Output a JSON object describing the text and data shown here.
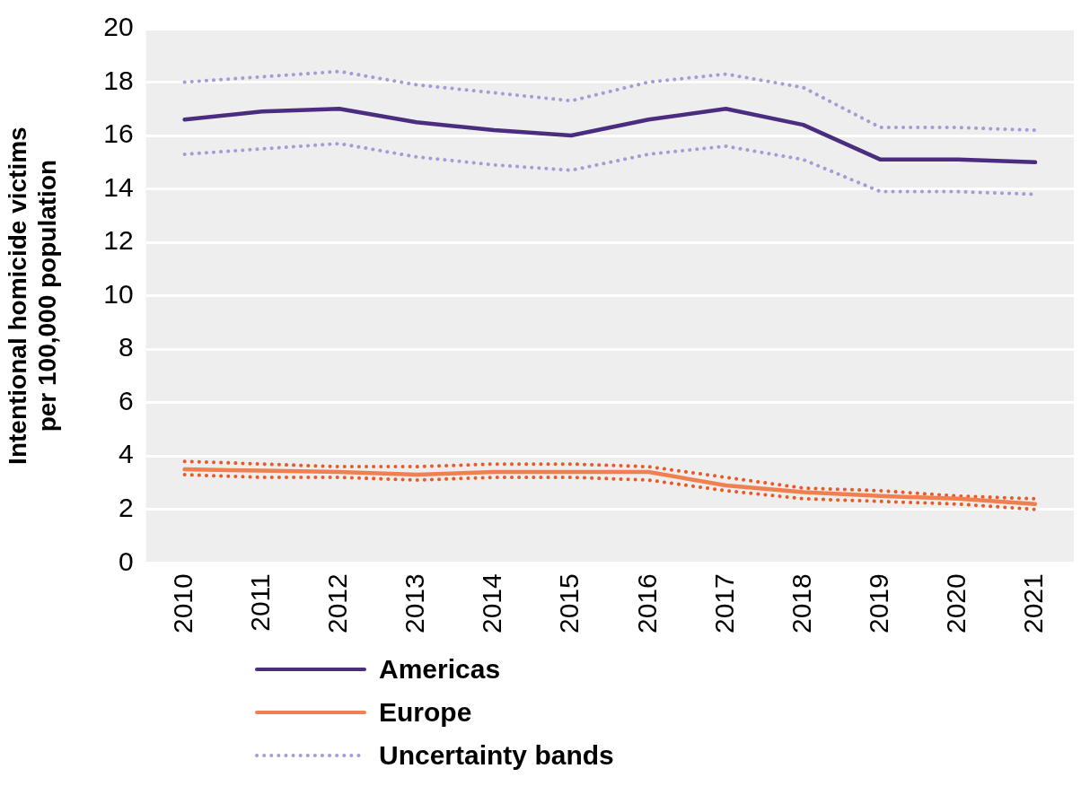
{
  "chart_data": {
    "type": "line",
    "ylabel": "Intentional homicide victims per 100,000 population",
    "categories": [
      "2010",
      "2011",
      "2012",
      "2013",
      "2014",
      "2015",
      "2016",
      "2017",
      "2018",
      "2019",
      "2020",
      "2021"
    ],
    "series": [
      {
        "name": "Americas",
        "color": "#4a2d7f",
        "values": [
          16.6,
          16.9,
          17.0,
          16.5,
          16.2,
          16.0,
          16.6,
          17.0,
          16.4,
          15.1,
          15.1,
          15.0
        ]
      },
      {
        "name": "Europe",
        "color": "#f08050",
        "values": [
          3.5,
          3.45,
          3.4,
          3.3,
          3.4,
          3.4,
          3.4,
          2.9,
          2.65,
          2.5,
          2.4,
          2.2
        ]
      },
      {
        "name": "Uncertainty bands",
        "color": "#a59cd6",
        "line_style": "dotted",
        "values": [
          18.0,
          18.2,
          18.4,
          17.9,
          17.6,
          17.3,
          18.0,
          18.3,
          17.8,
          16.3,
          16.3,
          16.2
        ]
      },
      {
        "color": "#a59cd6",
        "line_style": "dotted",
        "values": [
          15.3,
          15.5,
          15.7,
          15.2,
          14.9,
          14.7,
          15.3,
          15.6,
          15.1,
          13.9,
          13.9,
          13.8
        ]
      },
      {
        "color": "#e85a28",
        "line_style": "dotted",
        "values": [
          3.8,
          3.7,
          3.6,
          3.6,
          3.7,
          3.7,
          3.6,
          3.2,
          2.8,
          2.7,
          2.5,
          2.4
        ]
      },
      {
        "color": "#e85a28",
        "line_style": "dotted",
        "values": [
          3.3,
          3.2,
          3.2,
          3.1,
          3.2,
          3.2,
          3.1,
          2.7,
          2.4,
          2.3,
          2.2,
          2.0
        ]
      }
    ],
    "ylim": [
      0,
      20
    ],
    "yticks": [
      0,
      2,
      4,
      6,
      8,
      10,
      12,
      14,
      16,
      18,
      20
    ],
    "grid": "y",
    "legend": "bottom",
    "marker": "none"
  }
}
